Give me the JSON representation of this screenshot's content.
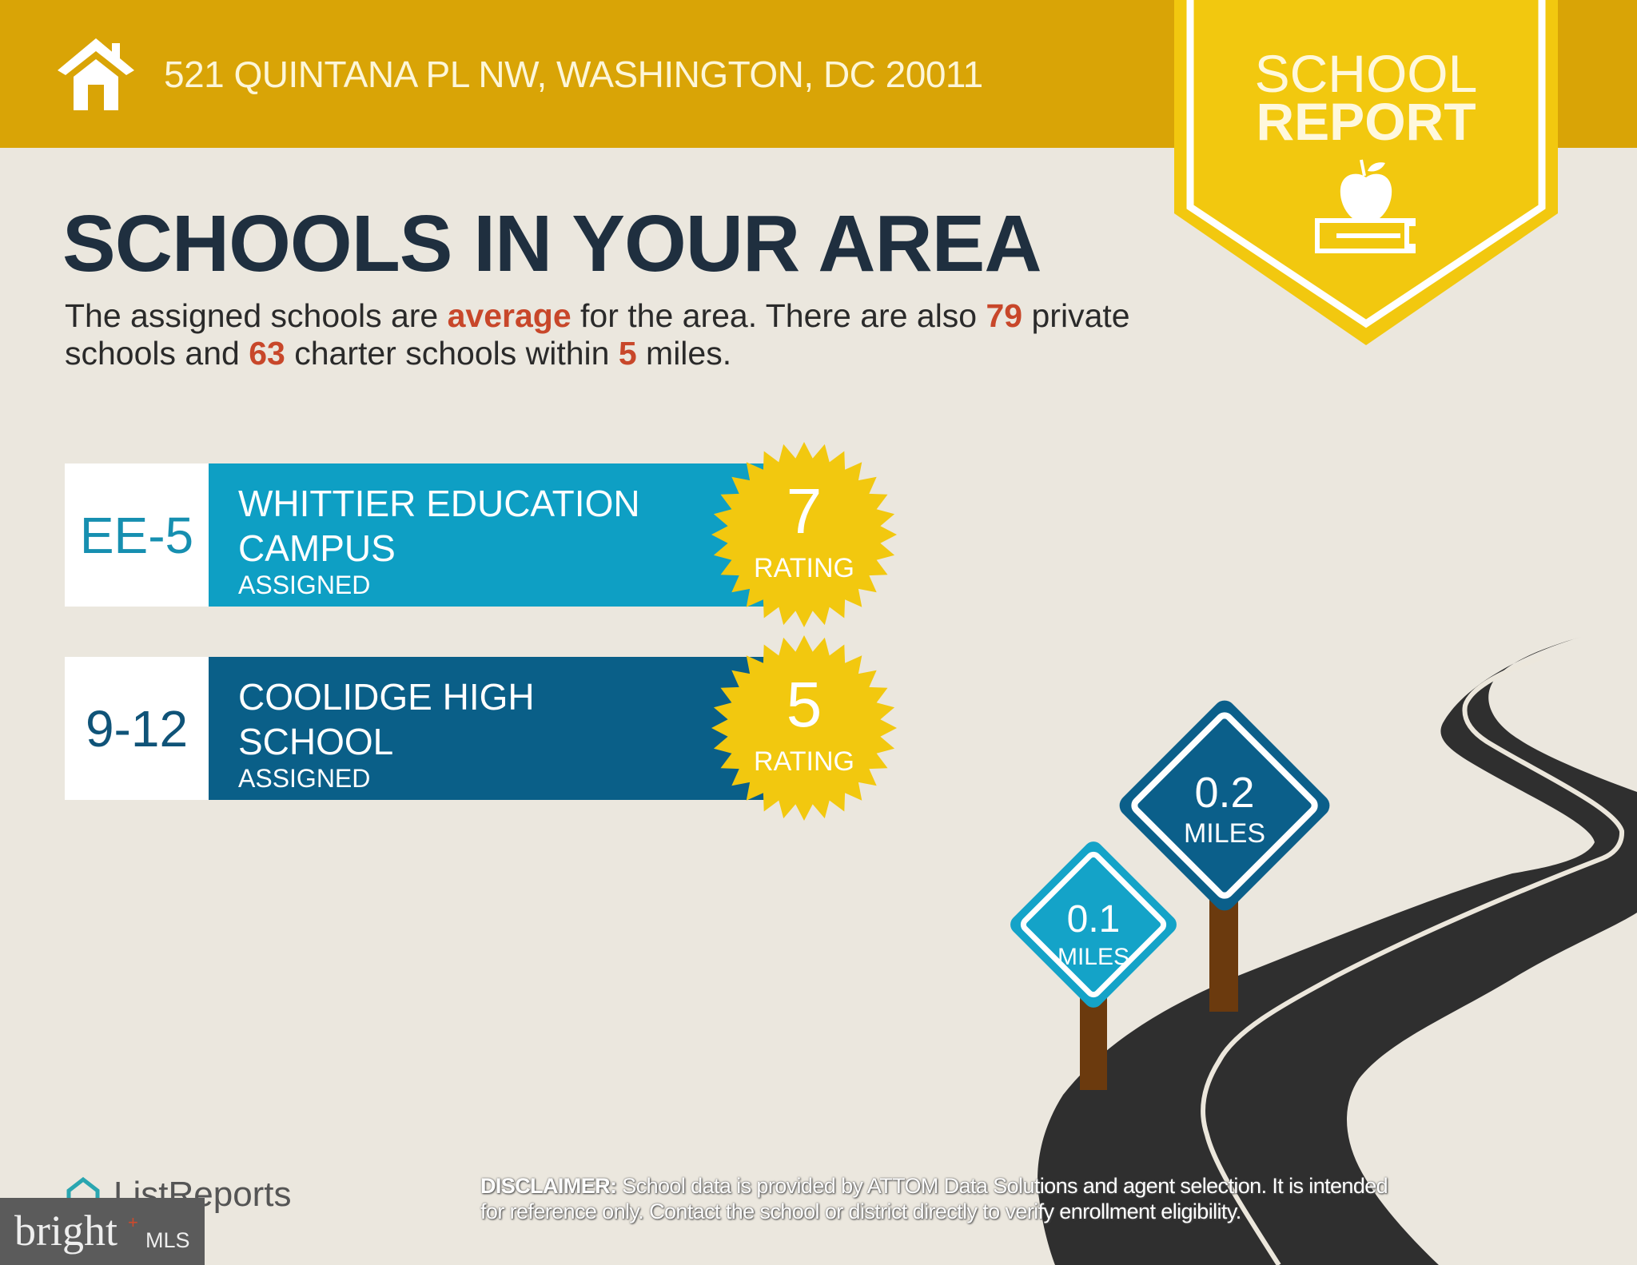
{
  "header": {
    "address": "521 QUINTANA PL NW, WASHINGTON, DC 20011",
    "icon": "house-icon"
  },
  "badge": {
    "line1": "SCHOOL",
    "line2": "REPORT",
    "icon": "apple-on-book-icon"
  },
  "main": {
    "title": "SCHOOLS IN YOUR AREA",
    "summary": {
      "t1": "The assigned schools are ",
      "quality": "average",
      "t2": " for the area. There are also ",
      "private_count": "79",
      "t3": " private schools and ",
      "charter_count": "63",
      "t4": " charter schools within ",
      "radius": "5",
      "t5": " miles."
    },
    "schools": [
      {
        "grades": "EE-5",
        "name_line1": "WHITTIER EDUCATION",
        "name_line2": "CAMPUS",
        "status": "ASSIGNED",
        "rating": "7",
        "rating_label": "RATING",
        "color": "#0e9fc4"
      },
      {
        "grades": "9-12",
        "name_line1": "COOLIDGE HIGH",
        "name_line2": "SCHOOL",
        "status": "ASSIGNED",
        "rating": "5",
        "rating_label": "RATING",
        "color": "#0a5f88"
      }
    ]
  },
  "signs": [
    {
      "value": "0.1",
      "unit": "MILES",
      "color": "#14a3c8"
    },
    {
      "value": "0.2",
      "unit": "MILES",
      "color": "#0b5f8a"
    }
  ],
  "footer": {
    "disclaimer_label": "DISCLAIMER:",
    "disclaimer_line1": " School data is provided by ATTOM Data Solutions and agent selection. It is intended",
    "disclaimer_line2": "for reference only. Contact the school or district directly to verify enrollment eligibility.",
    "listreports_logo": "ListReports",
    "bright_logo": "bright",
    "bright_mls": "MLS"
  },
  "colors": {
    "header": "#d9a406",
    "badge": "#f2c80f",
    "star": "#f2c80f",
    "highlight": "#c8472a",
    "road": "#2f2f2f"
  }
}
